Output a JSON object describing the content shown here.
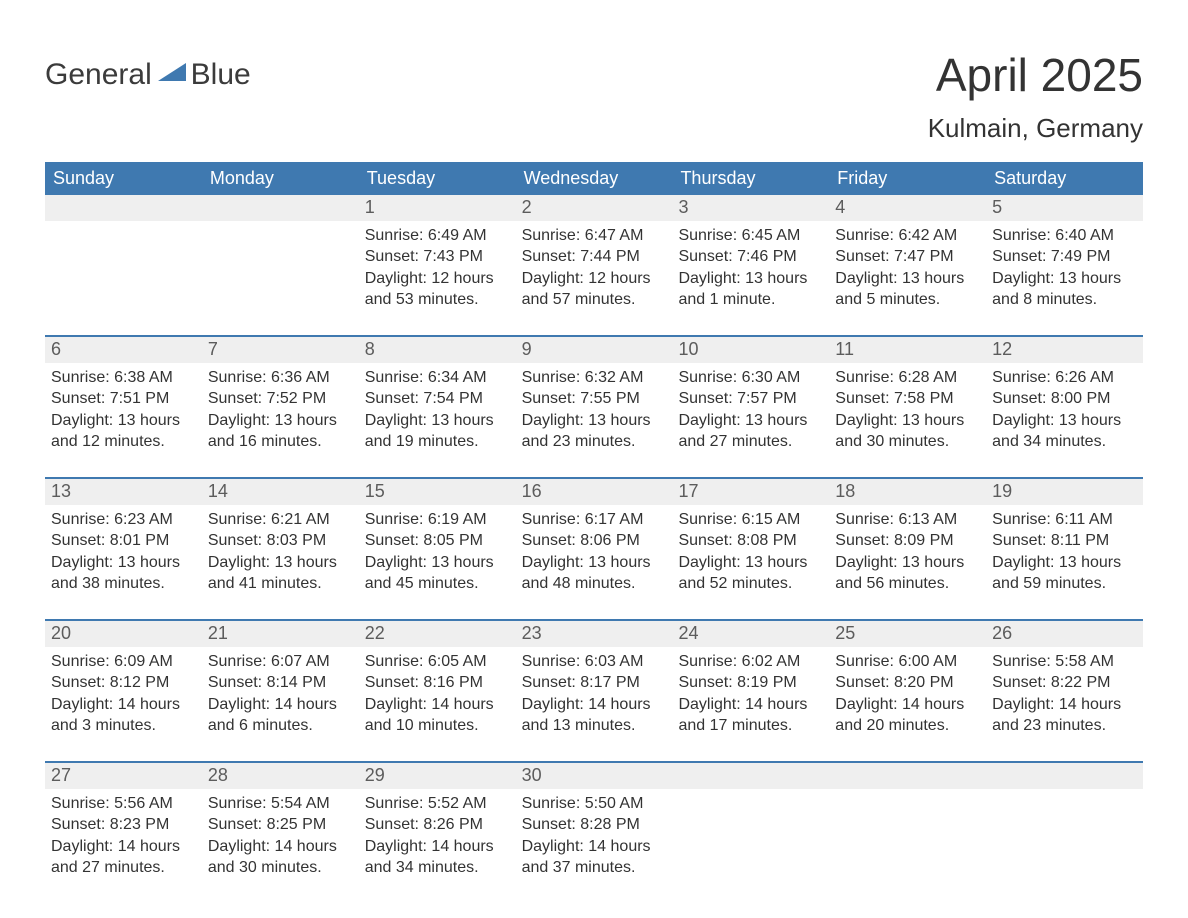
{
  "logo": {
    "word1": "General",
    "word2": "Blue",
    "accent_color": "#3f79b0"
  },
  "title": "April 2025",
  "location": "Kulmain, Germany",
  "colors": {
    "header_bg": "#3f79b0",
    "header_text": "#ffffff",
    "daynum_bg": "#efefef",
    "daynum_text": "#5c5c5c",
    "body_text": "#333333",
    "week_border": "#3f79b0",
    "page_bg": "#ffffff"
  },
  "weekdays": [
    "Sunday",
    "Monday",
    "Tuesday",
    "Wednesday",
    "Thursday",
    "Friday",
    "Saturday"
  ],
  "weeks": [
    [
      {
        "day": "",
        "sunrise": "",
        "sunset": "",
        "daylight": ""
      },
      {
        "day": "",
        "sunrise": "",
        "sunset": "",
        "daylight": ""
      },
      {
        "day": "1",
        "sunrise": "Sunrise: 6:49 AM",
        "sunset": "Sunset: 7:43 PM",
        "daylight": "Daylight: 12 hours and 53 minutes."
      },
      {
        "day": "2",
        "sunrise": "Sunrise: 6:47 AM",
        "sunset": "Sunset: 7:44 PM",
        "daylight": "Daylight: 12 hours and 57 minutes."
      },
      {
        "day": "3",
        "sunrise": "Sunrise: 6:45 AM",
        "sunset": "Sunset: 7:46 PM",
        "daylight": "Daylight: 13 hours and 1 minute."
      },
      {
        "day": "4",
        "sunrise": "Sunrise: 6:42 AM",
        "sunset": "Sunset: 7:47 PM",
        "daylight": "Daylight: 13 hours and 5 minutes."
      },
      {
        "day": "5",
        "sunrise": "Sunrise: 6:40 AM",
        "sunset": "Sunset: 7:49 PM",
        "daylight": "Daylight: 13 hours and 8 minutes."
      }
    ],
    [
      {
        "day": "6",
        "sunrise": "Sunrise: 6:38 AM",
        "sunset": "Sunset: 7:51 PM",
        "daylight": "Daylight: 13 hours and 12 minutes."
      },
      {
        "day": "7",
        "sunrise": "Sunrise: 6:36 AM",
        "sunset": "Sunset: 7:52 PM",
        "daylight": "Daylight: 13 hours and 16 minutes."
      },
      {
        "day": "8",
        "sunrise": "Sunrise: 6:34 AM",
        "sunset": "Sunset: 7:54 PM",
        "daylight": "Daylight: 13 hours and 19 minutes."
      },
      {
        "day": "9",
        "sunrise": "Sunrise: 6:32 AM",
        "sunset": "Sunset: 7:55 PM",
        "daylight": "Daylight: 13 hours and 23 minutes."
      },
      {
        "day": "10",
        "sunrise": "Sunrise: 6:30 AM",
        "sunset": "Sunset: 7:57 PM",
        "daylight": "Daylight: 13 hours and 27 minutes."
      },
      {
        "day": "11",
        "sunrise": "Sunrise: 6:28 AM",
        "sunset": "Sunset: 7:58 PM",
        "daylight": "Daylight: 13 hours and 30 minutes."
      },
      {
        "day": "12",
        "sunrise": "Sunrise: 6:26 AM",
        "sunset": "Sunset: 8:00 PM",
        "daylight": "Daylight: 13 hours and 34 minutes."
      }
    ],
    [
      {
        "day": "13",
        "sunrise": "Sunrise: 6:23 AM",
        "sunset": "Sunset: 8:01 PM",
        "daylight": "Daylight: 13 hours and 38 minutes."
      },
      {
        "day": "14",
        "sunrise": "Sunrise: 6:21 AM",
        "sunset": "Sunset: 8:03 PM",
        "daylight": "Daylight: 13 hours and 41 minutes."
      },
      {
        "day": "15",
        "sunrise": "Sunrise: 6:19 AM",
        "sunset": "Sunset: 8:05 PM",
        "daylight": "Daylight: 13 hours and 45 minutes."
      },
      {
        "day": "16",
        "sunrise": "Sunrise: 6:17 AM",
        "sunset": "Sunset: 8:06 PM",
        "daylight": "Daylight: 13 hours and 48 minutes."
      },
      {
        "day": "17",
        "sunrise": "Sunrise: 6:15 AM",
        "sunset": "Sunset: 8:08 PM",
        "daylight": "Daylight: 13 hours and 52 minutes."
      },
      {
        "day": "18",
        "sunrise": "Sunrise: 6:13 AM",
        "sunset": "Sunset: 8:09 PM",
        "daylight": "Daylight: 13 hours and 56 minutes."
      },
      {
        "day": "19",
        "sunrise": "Sunrise: 6:11 AM",
        "sunset": "Sunset: 8:11 PM",
        "daylight": "Daylight: 13 hours and 59 minutes."
      }
    ],
    [
      {
        "day": "20",
        "sunrise": "Sunrise: 6:09 AM",
        "sunset": "Sunset: 8:12 PM",
        "daylight": "Daylight: 14 hours and 3 minutes."
      },
      {
        "day": "21",
        "sunrise": "Sunrise: 6:07 AM",
        "sunset": "Sunset: 8:14 PM",
        "daylight": "Daylight: 14 hours and 6 minutes."
      },
      {
        "day": "22",
        "sunrise": "Sunrise: 6:05 AM",
        "sunset": "Sunset: 8:16 PM",
        "daylight": "Daylight: 14 hours and 10 minutes."
      },
      {
        "day": "23",
        "sunrise": "Sunrise: 6:03 AM",
        "sunset": "Sunset: 8:17 PM",
        "daylight": "Daylight: 14 hours and 13 minutes."
      },
      {
        "day": "24",
        "sunrise": "Sunrise: 6:02 AM",
        "sunset": "Sunset: 8:19 PM",
        "daylight": "Daylight: 14 hours and 17 minutes."
      },
      {
        "day": "25",
        "sunrise": "Sunrise: 6:00 AM",
        "sunset": "Sunset: 8:20 PM",
        "daylight": "Daylight: 14 hours and 20 minutes."
      },
      {
        "day": "26",
        "sunrise": "Sunrise: 5:58 AM",
        "sunset": "Sunset: 8:22 PM",
        "daylight": "Daylight: 14 hours and 23 minutes."
      }
    ],
    [
      {
        "day": "27",
        "sunrise": "Sunrise: 5:56 AM",
        "sunset": "Sunset: 8:23 PM",
        "daylight": "Daylight: 14 hours and 27 minutes."
      },
      {
        "day": "28",
        "sunrise": "Sunrise: 5:54 AM",
        "sunset": "Sunset: 8:25 PM",
        "daylight": "Daylight: 14 hours and 30 minutes."
      },
      {
        "day": "29",
        "sunrise": "Sunrise: 5:52 AM",
        "sunset": "Sunset: 8:26 PM",
        "daylight": "Daylight: 14 hours and 34 minutes."
      },
      {
        "day": "30",
        "sunrise": "Sunrise: 5:50 AM",
        "sunset": "Sunset: 8:28 PM",
        "daylight": "Daylight: 14 hours and 37 minutes."
      },
      {
        "day": "",
        "sunrise": "",
        "sunset": "",
        "daylight": ""
      },
      {
        "day": "",
        "sunrise": "",
        "sunset": "",
        "daylight": ""
      },
      {
        "day": "",
        "sunrise": "",
        "sunset": "",
        "daylight": ""
      }
    ]
  ]
}
